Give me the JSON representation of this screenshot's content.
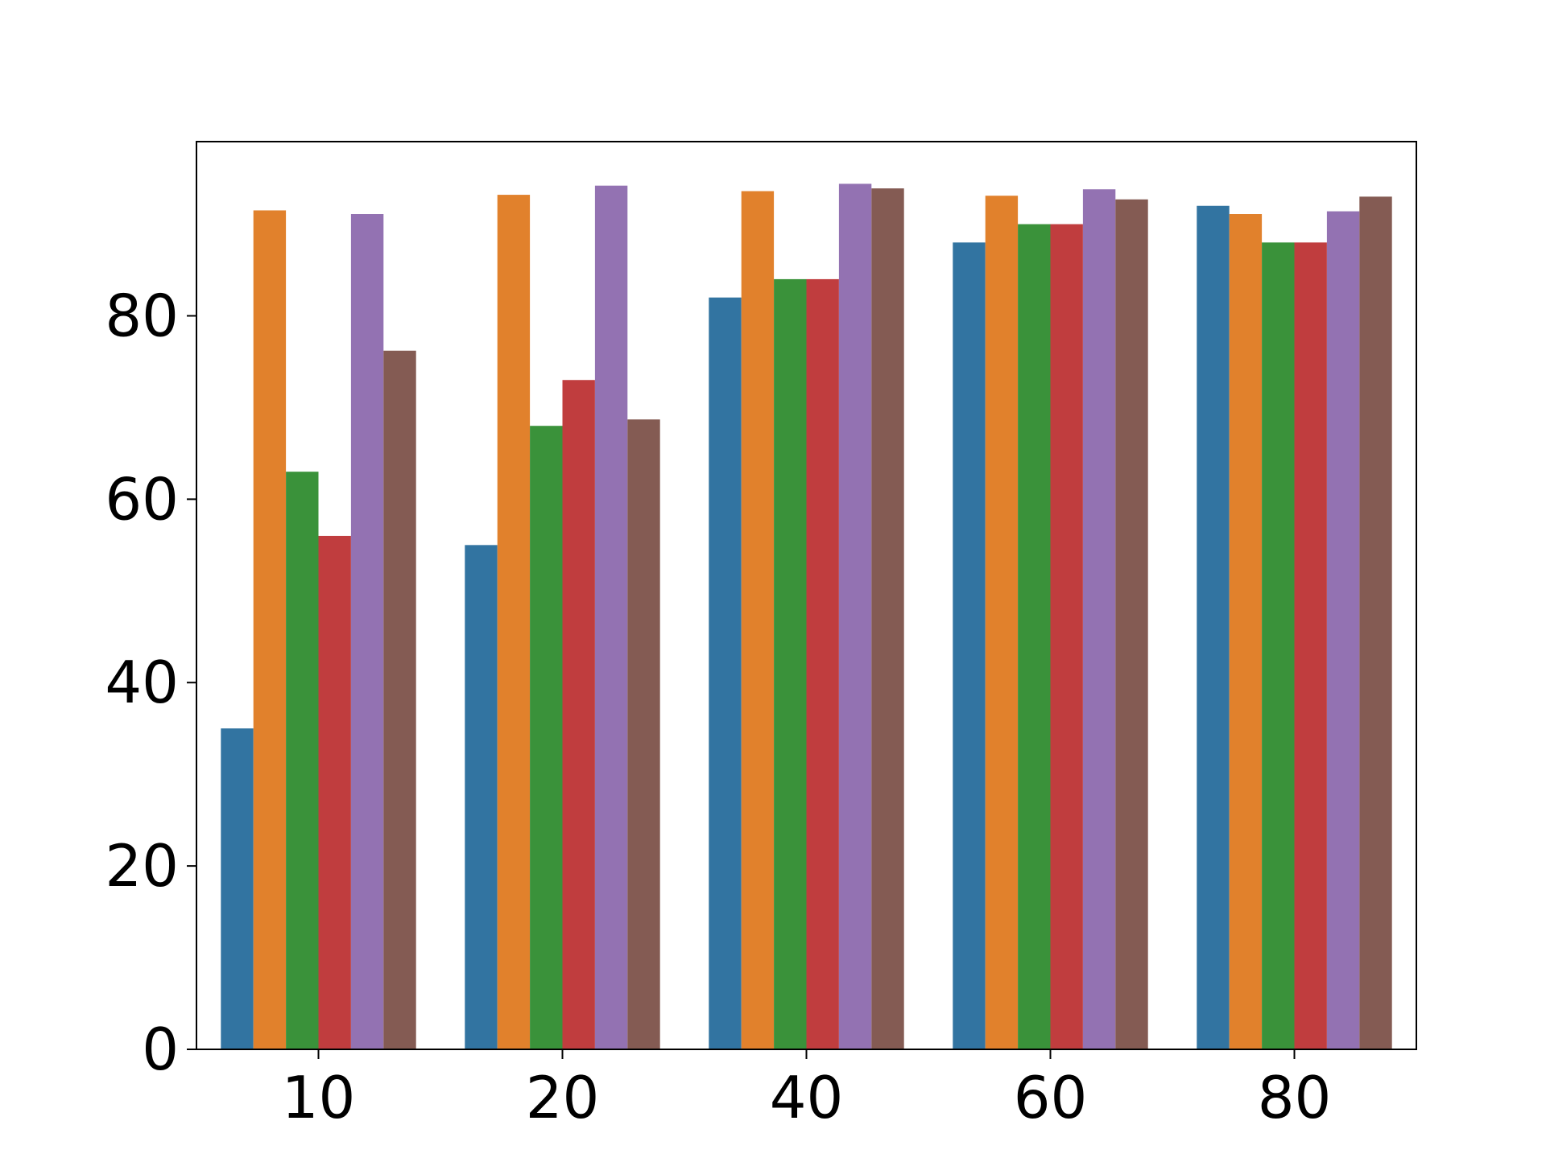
{
  "chart_data": {
    "type": "bar",
    "title": "",
    "xlabel": "",
    "ylabel": "",
    "categories": [
      "10",
      "20",
      "40",
      "60",
      "80"
    ],
    "ylim": [
      0,
      99
    ],
    "yticks": [
      "0",
      "20",
      "40",
      "60",
      "80"
    ],
    "grid": false,
    "legend": "none",
    "series": [
      {
        "color": "#3274a1",
        "values": [
          35,
          55,
          82,
          88,
          92
        ]
      },
      {
        "color": "#e1812c",
        "values": [
          91.5,
          93.2,
          93.6,
          93.1,
          91.1
        ]
      },
      {
        "color": "#3a923a",
        "values": [
          63,
          68,
          84,
          90,
          88
        ]
      },
      {
        "color": "#c03d3e",
        "values": [
          56,
          73,
          84,
          90,
          88
        ]
      },
      {
        "color": "#9372b2",
        "values": [
          91.1,
          94.2,
          94.4,
          93.8,
          91.4
        ]
      },
      {
        "color": "#845b53",
        "values": [
          76.2,
          68.7,
          93.9,
          92.7,
          93
        ]
      }
    ]
  }
}
